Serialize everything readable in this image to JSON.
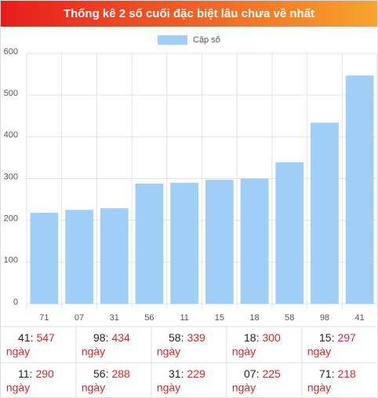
{
  "chart_data": {
    "type": "bar",
    "title": "Thống kê 2 số cuối đặc biệt lâu chưa về nhất",
    "legend": "Cặp số",
    "categories": [
      "71",
      "07",
      "31",
      "56",
      "11",
      "15",
      "18",
      "58",
      "98",
      "41"
    ],
    "values": [
      218,
      225,
      229,
      288,
      290,
      297,
      300,
      339,
      434,
      547
    ],
    "color": "#9fcff5",
    "ylim": [
      0,
      600
    ],
    "yticks": [
      0,
      100,
      200,
      300,
      400,
      500,
      600
    ],
    "grid": true
  },
  "table": {
    "unit": "ngày",
    "rows": [
      [
        {
          "label": "41:",
          "days": 547
        },
        {
          "label": "98:",
          "days": 434
        },
        {
          "label": "58:",
          "days": 339
        },
        {
          "label": "18:",
          "days": 300
        },
        {
          "label": "15:",
          "days": 297
        }
      ],
      [
        {
          "label": "11:",
          "days": 290
        },
        {
          "label": "56:",
          "days": 288
        },
        {
          "label": "31:",
          "days": 229
        },
        {
          "label": "07:",
          "days": 225
        },
        {
          "label": "71:",
          "days": 218
        }
      ]
    ]
  }
}
